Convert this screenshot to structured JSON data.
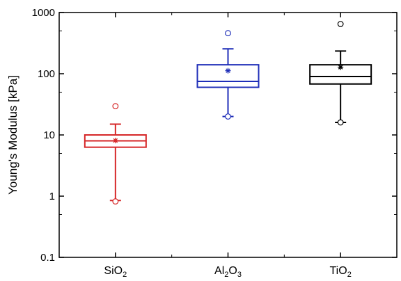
{
  "chart_data": {
    "type": "box",
    "ylabel": "Young's Modulus [kPa]",
    "yscale": "log",
    "ylim": [
      0.1,
      1000
    ],
    "yticks": [
      {
        "value": 0.1,
        "label": "0.1"
      },
      {
        "value": 1,
        "label": "1"
      },
      {
        "value": 10,
        "label": "10"
      },
      {
        "value": 100,
        "label": "100"
      },
      {
        "value": 1000,
        "label": "1000"
      }
    ],
    "grid": false,
    "categories": [
      {
        "base": "SiO",
        "sub1": "2",
        "mid": "",
        "sub2": ""
      },
      {
        "base": "Al",
        "sub1": "2",
        "mid": "O",
        "sub2": "3"
      },
      {
        "base": "TiO",
        "sub1": "2",
        "mid": "",
        "sub2": ""
      }
    ],
    "series": [
      {
        "color": "#d62728",
        "whisker_low": 0.85,
        "q1": 6.3,
        "median": 8.0,
        "q3": 10.0,
        "whisker_high": 15.0,
        "mean": 8.1,
        "outliers": [
          29.5,
          0.82
        ]
      },
      {
        "color": "#1f2eb8",
        "whisker_low": 20.0,
        "q1": 60.0,
        "median": 75.0,
        "q3": 140.0,
        "whisker_high": 255.0,
        "mean": 112.0,
        "outliers": [
          460.0,
          20.0
        ]
      },
      {
        "color": "#000000",
        "whisker_low": 16.0,
        "q1": 68.0,
        "median": 90.0,
        "q3": 140.0,
        "whisker_high": 235.0,
        "mean": 128.0,
        "outliers": [
          650.0,
          16.0
        ]
      }
    ]
  }
}
